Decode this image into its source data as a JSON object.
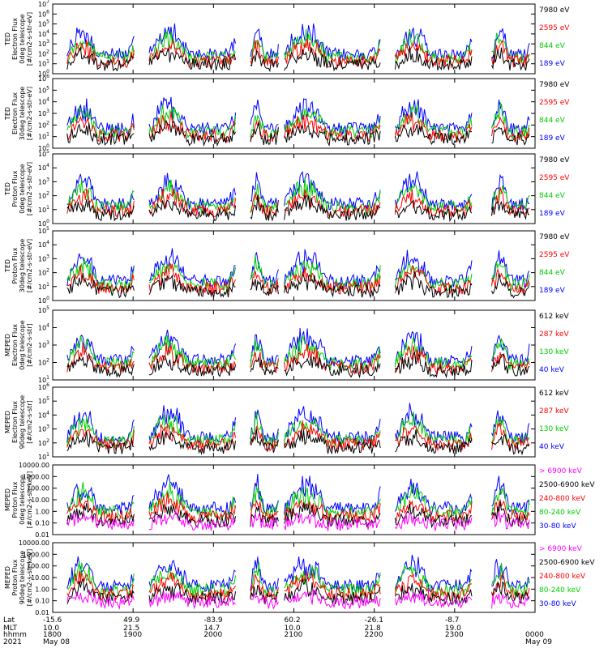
{
  "chart_data": [
    {
      "type": "line",
      "panel": "ted-electron-0deg",
      "ylabel": [
        "TED",
        "Electron Flux",
        "0deg telescope",
        "[#/cm2-s-str-eV]"
      ],
      "ylim": [
        1,
        10000000
      ],
      "yscale": "log",
      "yticks": [
        "10^0",
        "10^1",
        "10^2",
        "10^3",
        "10^4",
        "10^5",
        "10^6",
        "10^7"
      ],
      "series": [
        {
          "name": "7980 eV",
          "color": "#000000"
        },
        {
          "name": "2595 eV",
          "color": "#ff0000"
        },
        {
          "name": "844 eV",
          "color": "#00cc00"
        },
        {
          "name": "189 eV",
          "color": "#0000ff"
        }
      ]
    },
    {
      "type": "line",
      "panel": "ted-electron-30deg",
      "ylabel": [
        "TED",
        "Electron Flux",
        "30deg telescope",
        "[#/cm2-s-str-eV]"
      ],
      "ylim": [
        1,
        1000000
      ],
      "yscale": "log",
      "yticks": [
        "10^0",
        "10^1",
        "10^2",
        "10^3",
        "10^4",
        "10^5",
        "10^6"
      ],
      "series": [
        {
          "name": "7980 eV",
          "color": "#000000"
        },
        {
          "name": "2595 eV",
          "color": "#ff0000"
        },
        {
          "name": "844 eV",
          "color": "#00cc00"
        },
        {
          "name": "189 eV",
          "color": "#0000ff"
        }
      ]
    },
    {
      "type": "line",
      "panel": "ted-proton-0deg",
      "ylabel": [
        "TED",
        "Proton Flux",
        "0deg telescope",
        "[#/cm2-s-str-eV]"
      ],
      "ylim": [
        1,
        100000
      ],
      "yscale": "log",
      "yticks": [
        "10^0",
        "10^1",
        "10^2",
        "10^3",
        "10^4",
        "10^5"
      ],
      "series": [
        {
          "name": "7980 eV",
          "color": "#000000"
        },
        {
          "name": "2595 eV",
          "color": "#ff0000"
        },
        {
          "name": "844 eV",
          "color": "#00cc00"
        },
        {
          "name": "189 eV",
          "color": "#0000ff"
        }
      ]
    },
    {
      "type": "line",
      "panel": "ted-proton-30deg",
      "ylabel": [
        "TED",
        "Proton Flux",
        "30deg telescope",
        "[#/cm2-s-str-eV]"
      ],
      "ylim": [
        1,
        100000
      ],
      "yscale": "log",
      "yticks": [
        "10^0",
        "10^1",
        "10^2",
        "10^3",
        "10^4",
        "10^5"
      ],
      "series": [
        {
          "name": "7980 eV",
          "color": "#000000"
        },
        {
          "name": "2595 eV",
          "color": "#ff0000"
        },
        {
          "name": "844 eV",
          "color": "#00cc00"
        },
        {
          "name": "189 eV",
          "color": "#0000ff"
        }
      ]
    },
    {
      "type": "line",
      "panel": "meped-electron-0deg",
      "ylabel": [
        "MEPED",
        "Electron Flux",
        "0deg telescope",
        "[#/cm2-s-str]"
      ],
      "ylim": [
        10,
        100000
      ],
      "yscale": "log",
      "yticks": [
        "10^1",
        "10^2",
        "10^3",
        "10^4",
        "10^5"
      ],
      "series": [
        {
          "name": "612 keV",
          "color": "#000000"
        },
        {
          "name": "287 keV",
          "color": "#ff0000"
        },
        {
          "name": "130 keV",
          "color": "#00cc00"
        },
        {
          "name": "40 keV",
          "color": "#0000ff"
        }
      ]
    },
    {
      "type": "line",
      "panel": "meped-electron-90deg",
      "ylabel": [
        "MEPED",
        "Electron Flux",
        "90deg telescope",
        "[#/cm2-s-str]"
      ],
      "ylim": [
        10,
        1000000
      ],
      "yscale": "log",
      "yticks": [
        "10^1",
        "10^2",
        "10^3",
        "10^4",
        "10^5",
        "10^6"
      ],
      "series": [
        {
          "name": "612 keV",
          "color": "#000000"
        },
        {
          "name": "287 keV",
          "color": "#ff0000"
        },
        {
          "name": "130 keV",
          "color": "#00cc00"
        },
        {
          "name": "40 keV",
          "color": "#0000ff"
        }
      ]
    },
    {
      "type": "line",
      "panel": "meped-proton-0deg",
      "ylabel": [
        "MEPED",
        "Proton Flux",
        "0deg telescope",
        "[#/cm2-s-str-keV]"
      ],
      "ylim": [
        0.01,
        10000
      ],
      "yscale": "log",
      "yticks": [
        "0.01",
        "0.10",
        "1.00",
        "10.00",
        "100.00",
        "1000.00",
        "10000.00"
      ],
      "series": [
        {
          "name": "> 6900 keV",
          "color": "#ff00ff"
        },
        {
          "name": "2500-6900 keV",
          "color": "#000000"
        },
        {
          "name": "240-800 keV",
          "color": "#ff0000"
        },
        {
          "name": "80-240 keV",
          "color": "#00cc00"
        },
        {
          "name": "30-80 keV",
          "color": "#0000ff"
        }
      ]
    },
    {
      "type": "line",
      "panel": "meped-proton-90deg",
      "ylabel": [
        "MEPED",
        "Proton Flux",
        "90deg telescope",
        "[#/cm2-s-str-keV]"
      ],
      "ylim": [
        0.01,
        10000
      ],
      "yscale": "log",
      "yticks": [
        "0.01",
        "0.10",
        "1.00",
        "10.00",
        "100.00",
        "1000.00",
        "10000.00"
      ],
      "series": [
        {
          "name": "> 6900 keV",
          "color": "#ff00ff"
        },
        {
          "name": "2500-6900 keV",
          "color": "#000000"
        },
        {
          "name": "240-800 keV",
          "color": "#ff0000"
        },
        {
          "name": "80-240 keV",
          "color": "#00cc00"
        },
        {
          "name": "30-80 keV",
          "color": "#0000ff"
        }
      ]
    }
  ],
  "x_axis": {
    "row_labels": [
      "Lat",
      "MLT",
      "hhmm",
      "2021"
    ],
    "ticks": [
      {
        "lat": "-15.6",
        "mlt": "10.0",
        "hhmm": "1800",
        "date": "May 08"
      },
      {
        "lat": "49.9",
        "mlt": "21.5",
        "hhmm": "1900",
        "date": ""
      },
      {
        "lat": "-83.9",
        "mlt": "14.7",
        "hhmm": "2000",
        "date": ""
      },
      {
        "lat": "60.2",
        "mlt": "10.0",
        "hhmm": "2100",
        "date": ""
      },
      {
        "lat": "-26.1",
        "mlt": "21.8",
        "hhmm": "2200",
        "date": ""
      },
      {
        "lat": "-8.7",
        "mlt": "19.0",
        "hhmm": "2300",
        "date": ""
      },
      {
        "lat": "",
        "mlt": "",
        "hhmm": "0000",
        "date": "May 09"
      }
    ]
  }
}
